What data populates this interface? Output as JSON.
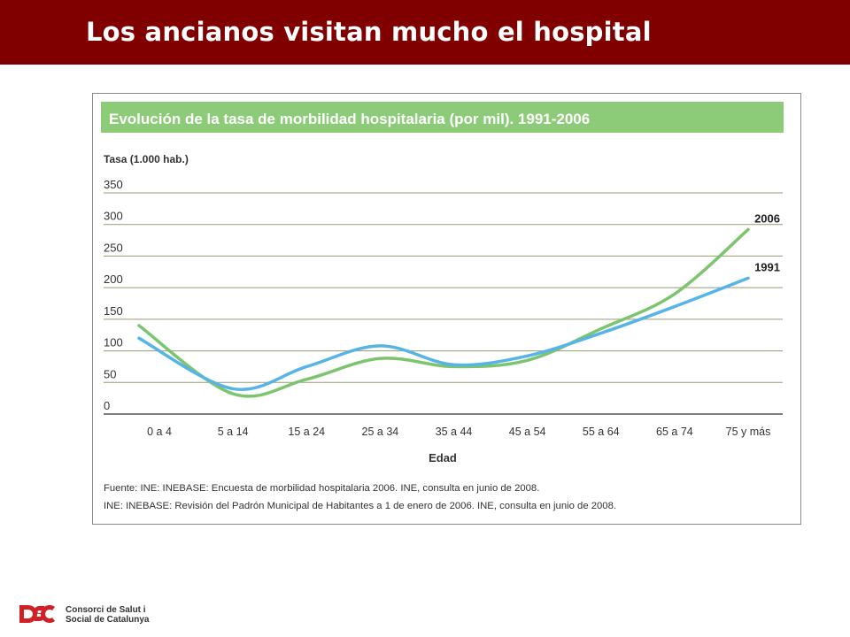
{
  "slide": {
    "title": "Los ancianos visitan mucho el hospital"
  },
  "colors": {
    "title_bar": "#800000",
    "chart_header": "#8ccc78",
    "series_2006": "#7dc46e",
    "series_1991": "#56b4e6",
    "gridline": "#9a9a73",
    "axis_text": "#333333",
    "logo": "#d11f26"
  },
  "chart_data": {
    "type": "line",
    "title": "Evolución de la tasa de morbilidad hospitalaria (por mil). 1991-2006",
    "ylabel": "Tasa (1.000 hab.)",
    "xlabel": "Edad",
    "ylim": [
      0,
      350
    ],
    "yticks": [
      "350",
      "300",
      "250",
      "200",
      "150",
      "100",
      "50",
      "0"
    ],
    "grid": true,
    "categories": [
      "0 a 4",
      "5 a 14",
      "15 a 24",
      "25 a 34",
      "35 a 44",
      "45 a 54",
      "55 a 64",
      "65 a 74",
      "75 y más"
    ],
    "series": [
      {
        "name": "2006",
        "values": [
          140,
          32,
          55,
          88,
          75,
          85,
          135,
          190,
          292
        ]
      },
      {
        "name": "1991",
        "values": [
          120,
          40,
          75,
          108,
          78,
          92,
          128,
          170,
          215
        ]
      }
    ],
    "legend": "inline labels at line ends, right",
    "source_lines": [
      "Fuente: INE: INEBASE: Encuesta de morbilidad hospitalaria 2006. INE, consulta en junio de 2008.",
      "INE: INEBASE: Revisión del Padrón Municipal de Habitantes a 1 de enero de 2006. INE, consulta en junio de 2008."
    ]
  },
  "footer": {
    "logo_mark": "CSC",
    "org_line1": "Consorci de Salut i",
    "org_line2": "Social de Catalunya"
  }
}
